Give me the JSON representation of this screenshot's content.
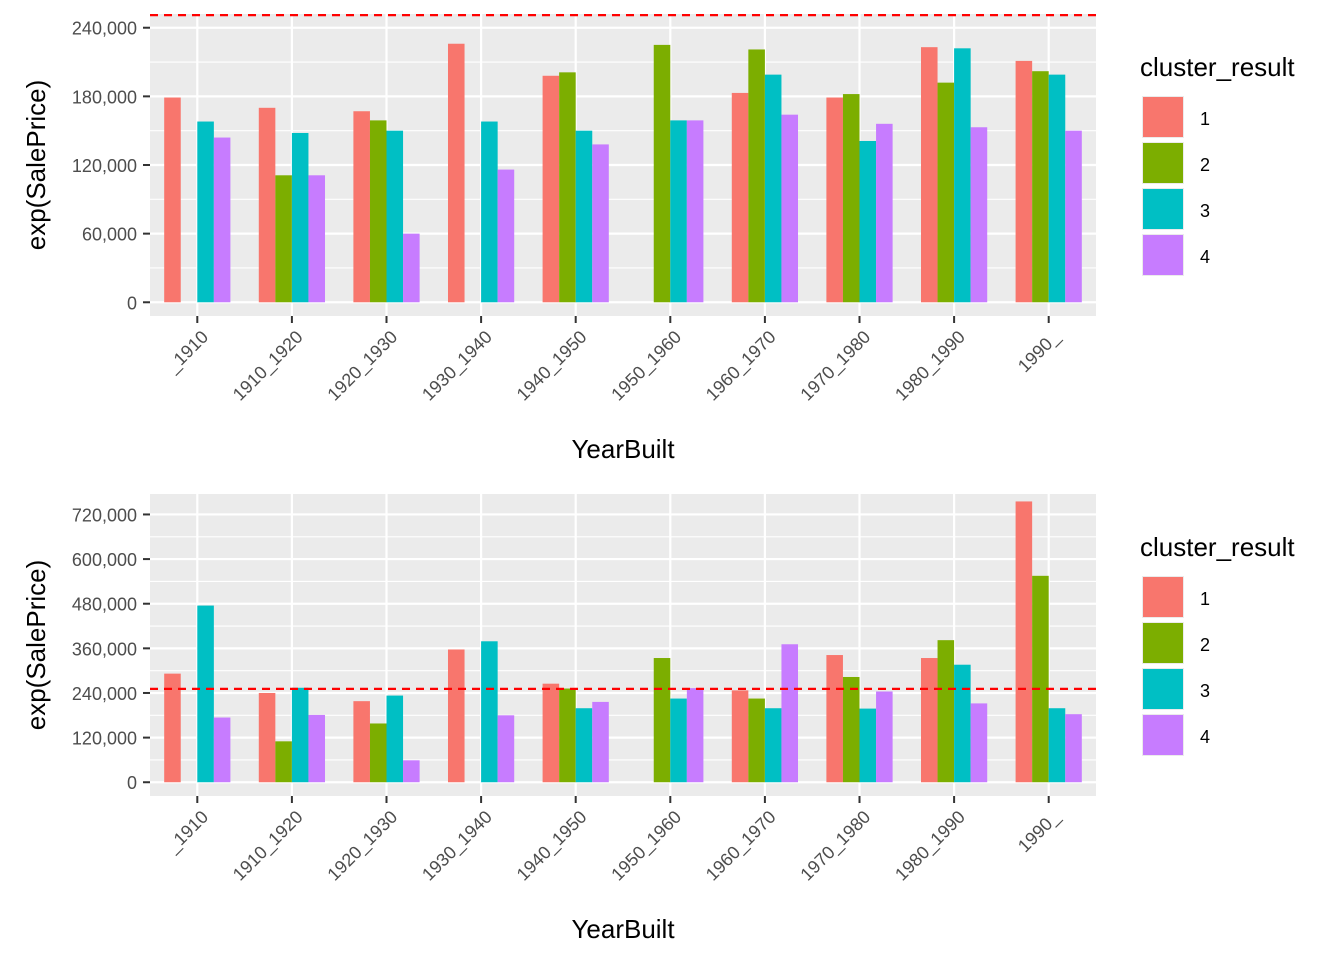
{
  "colors": {
    "panel_bg": "#EBEBEB",
    "grid": "#FFFFFF",
    "axis_text": "#4D4D4D",
    "title_text": "#000000",
    "reference_line": "#FF0000"
  },
  "legend": {
    "title": "cluster_result",
    "entries": [
      {
        "label": "1",
        "color": "#F8766D"
      },
      {
        "label": "2",
        "color": "#7CAE00"
      },
      {
        "label": "3",
        "color": "#00BFC4"
      },
      {
        "label": "4",
        "color": "#C77CFF"
      }
    ]
  },
  "chart_data": [
    {
      "type": "bar",
      "title": "",
      "xlabel": "YearBuilt",
      "ylabel": "exp(SalePrice)",
      "categories": [
        "_1910",
        "1910_1920",
        "1920_1930",
        "1930_1940",
        "1940_1950",
        "1950_1960",
        "1960_1970",
        "1970_1980",
        "1980_1990",
        "1990_"
      ],
      "ylim": [
        -12000,
        252000
      ],
      "yticks": [
        0,
        60000,
        120000,
        180000,
        240000
      ],
      "ytick_labels": [
        "0",
        "60,000",
        "120,000",
        "180,000",
        "240,000"
      ],
      "reference_line": 251000,
      "legend_position": "right",
      "series": [
        {
          "name": "1",
          "values": [
            179000,
            170000,
            167000,
            226000,
            198000,
            null,
            183000,
            179000,
            223000,
            211000
          ]
        },
        {
          "name": "2",
          "values": [
            null,
            111000,
            159000,
            null,
            201000,
            225000,
            221000,
            182000,
            192000,
            202000
          ]
        },
        {
          "name": "3",
          "values": [
            158000,
            148000,
            150000,
            158000,
            150000,
            159000,
            199000,
            141000,
            222000,
            199000
          ]
        },
        {
          "name": "4",
          "values": [
            144000,
            111000,
            60000,
            116000,
            138000,
            159000,
            164000,
            156000,
            153000,
            150000
          ]
        }
      ]
    },
    {
      "type": "bar",
      "title": "",
      "xlabel": "YearBuilt",
      "ylabel": "exp(SalePrice)",
      "categories": [
        "_1910",
        "1910_1920",
        "1920_1930",
        "1930_1940",
        "1940_1950",
        "1950_1960",
        "1960_1970",
        "1970_1980",
        "1980_1990",
        "1990_"
      ],
      "ylim": [
        -37000,
        775000
      ],
      "yticks": [
        0,
        120000,
        240000,
        360000,
        480000,
        600000,
        720000
      ],
      "ytick_labels": [
        "0",
        "120,000",
        "240,000",
        "360,000",
        "480,000",
        "600,000",
        "720,000"
      ],
      "reference_line": 251000,
      "legend_position": "right",
      "series": [
        {
          "name": "1",
          "values": [
            292000,
            240000,
            218000,
            357000,
            265000,
            null,
            247000,
            342000,
            334000,
            755000
          ]
        },
        {
          "name": "2",
          "values": [
            null,
            110000,
            158000,
            null,
            252000,
            334000,
            225000,
            283000,
            382000,
            555000
          ]
        },
        {
          "name": "3",
          "values": [
            475000,
            254000,
            233000,
            379000,
            199000,
            225000,
            199000,
            198000,
            316000,
            199000
          ]
        },
        {
          "name": "4",
          "values": [
            174000,
            181000,
            59000,
            180000,
            216000,
            253000,
            371000,
            244000,
            212000,
            183000
          ]
        }
      ]
    }
  ]
}
